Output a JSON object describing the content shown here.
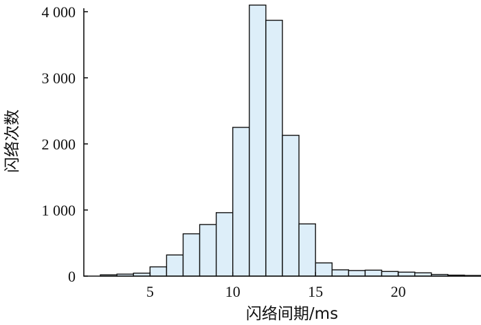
{
  "chart_data": {
    "type": "bar",
    "title": "",
    "xlabel": "闪络间期/ms",
    "ylabel": "闪络次数",
    "xlim": [
      1,
      25
    ],
    "ylim": [
      0,
      4000
    ],
    "bar_width": 1,
    "bar_color": "#ddeef9",
    "bar_edge_color": "#111111",
    "x_ticks": [
      5,
      10,
      15,
      20
    ],
    "y_ticks": [
      0,
      1000,
      2000,
      3000,
      4000
    ],
    "x_tick_labels": [
      "5",
      "10",
      "15",
      "20"
    ],
    "y_tick_labels": [
      "0",
      "1 000",
      "2 000",
      "3 000",
      "4 000"
    ],
    "bins": [
      {
        "start": 2,
        "value": 20
      },
      {
        "start": 3,
        "value": 30
      },
      {
        "start": 4,
        "value": 45
      },
      {
        "start": 5,
        "value": 140
      },
      {
        "start": 6,
        "value": 320
      },
      {
        "start": 7,
        "value": 640
      },
      {
        "start": 8,
        "value": 780
      },
      {
        "start": 9,
        "value": 960
      },
      {
        "start": 10,
        "value": 2250
      },
      {
        "start": 11,
        "value": 4100
      },
      {
        "start": 12,
        "value": 3870
      },
      {
        "start": 13,
        "value": 2130
      },
      {
        "start": 14,
        "value": 790
      },
      {
        "start": 15,
        "value": 200
      },
      {
        "start": 16,
        "value": 95
      },
      {
        "start": 17,
        "value": 85
      },
      {
        "start": 18,
        "value": 90
      },
      {
        "start": 19,
        "value": 70
      },
      {
        "start": 20,
        "value": 60
      },
      {
        "start": 21,
        "value": 50
      },
      {
        "start": 22,
        "value": 25
      },
      {
        "start": 23,
        "value": 15
      },
      {
        "start": 24,
        "value": 10
      }
    ],
    "grid": false,
    "legend": "none"
  }
}
